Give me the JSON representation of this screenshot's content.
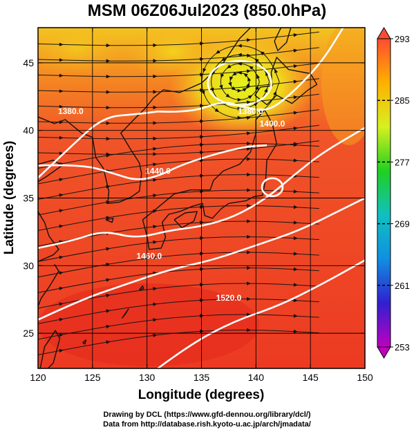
{
  "title": "MSM 06Z06Jul2023 (850.0hPa)",
  "xlabel": "Longitude (degrees)",
  "ylabel": "Latitude  (degrees)",
  "x_ticks": [
    "120",
    "125",
    "130",
    "135",
    "140",
    "145",
    "150"
  ],
  "y_ticks": [
    "25",
    "30",
    "35",
    "40",
    "45"
  ],
  "colorbar_ticks": [
    "293",
    "285",
    "277",
    "269",
    "261",
    "253"
  ],
  "contour_labels": [
    "1380.0",
    "1380.0",
    "1400.0",
    "1440.0",
    "1460.0",
    "1520.0"
  ],
  "credits": [
    "Drawing by DCL (https://www.gfd-dennou.org/library/dcl/)",
    "Data from http://database.rish.kyoto-u.ac.jp/arch/jmadata/"
  ],
  "map": {
    "lon_range": [
      120,
      150
    ],
    "lat_range": [
      22.4,
      47.6
    ],
    "grid_lons": [
      125,
      130,
      135,
      140,
      145
    ],
    "grid_lats": [
      25,
      30,
      35,
      40,
      45
    ],
    "color_scale": {
      "min": 253,
      "max": 293,
      "stops": [
        "#c000c0",
        "#3020d0",
        "#1090e0",
        "#10c0c0",
        "#20d020",
        "#d8f020",
        "#ffb000",
        "#ff4c30"
      ]
    },
    "field_colors": {
      "cold": "#e2f020",
      "warm": "#ef3a25",
      "hot": "#e82818"
    },
    "contour_color": "#ffffff",
    "coast_color": "#111111"
  }
}
